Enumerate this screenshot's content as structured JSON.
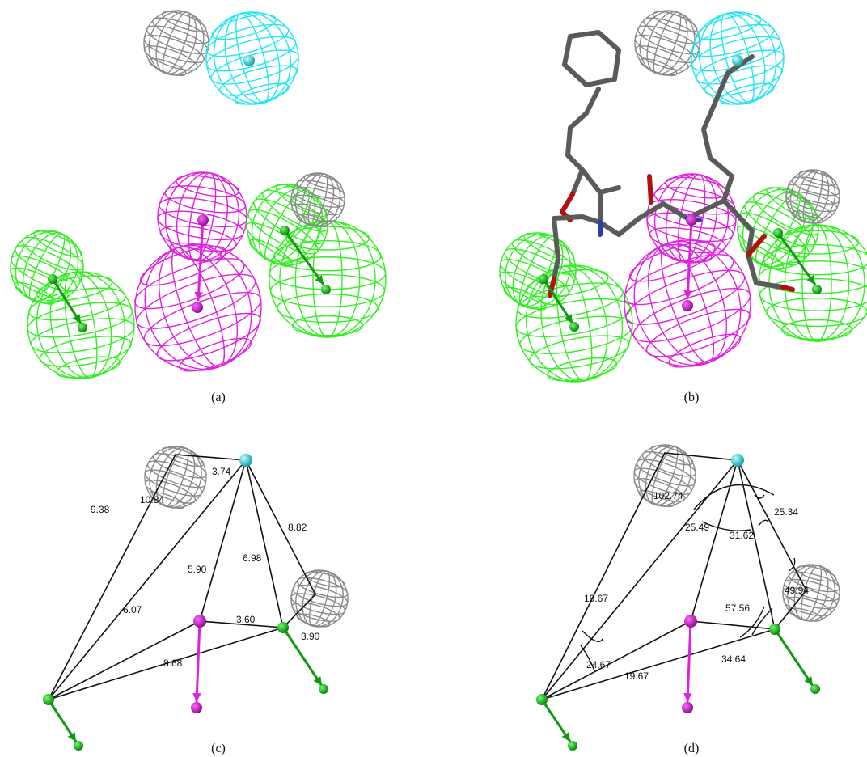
{
  "panels": [
    {
      "label": "(a)"
    },
    {
      "label": "(b)"
    },
    {
      "label": "(c)",
      "distances": [
        "3.74",
        "9.38",
        "10.84",
        "8.82",
        "5.90",
        "6.98",
        "3.60",
        "6.07",
        "3.90",
        "8.68"
      ]
    },
    {
      "label": "(d)",
      "angles": [
        "102.74",
        "25.49",
        "31.62",
        "25.34",
        "49.94",
        "19.67",
        "57.56",
        "24.67",
        "19.67",
        "34.64"
      ]
    }
  ]
}
